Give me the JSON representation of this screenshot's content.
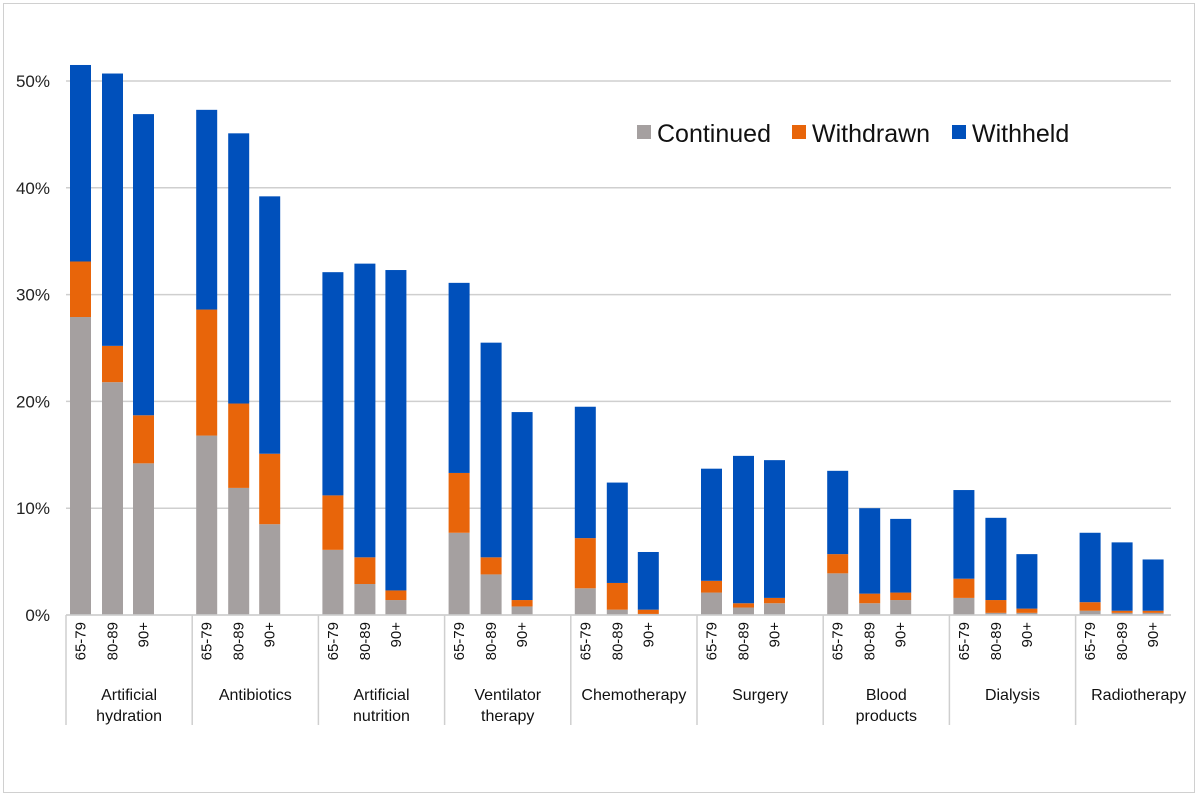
{
  "chart_data": {
    "type": "bar",
    "stacked": true,
    "title": "",
    "xlabel": "",
    "ylabel": "",
    "ylim": [
      0,
      50
    ],
    "yticks": [
      "0%",
      "10%",
      "20%",
      "30%",
      "40%",
      "50%"
    ],
    "grid": true,
    "legend_position": "top-right",
    "age_groups": [
      "65-79",
      "80-89",
      "90+"
    ],
    "categories": [
      {
        "name": "Artificial hydration",
        "lines": [
          "Artificial",
          "hydration"
        ]
      },
      {
        "name": "Antibiotics",
        "lines": [
          "Antibiotics"
        ]
      },
      {
        "name": "Artificial nutrition",
        "lines": [
          "Artificial",
          "nutrition"
        ]
      },
      {
        "name": "Ventilator therapy",
        "lines": [
          "Ventilator",
          "therapy"
        ]
      },
      {
        "name": "Chemotherapy",
        "lines": [
          "Chemotherapy"
        ]
      },
      {
        "name": "Surgery",
        "lines": [
          "Surgery"
        ]
      },
      {
        "name": "Blood products",
        "lines": [
          "Blood",
          "products"
        ]
      },
      {
        "name": "Dialysis",
        "lines": [
          "Dialysis"
        ]
      },
      {
        "name": "Radiotherapy",
        "lines": [
          "Radiotherapy"
        ]
      }
    ],
    "series": [
      {
        "name": "Continued",
        "color": "#a5a0a0",
        "values": [
          [
            27.9,
            21.8,
            14.2
          ],
          [
            16.8,
            11.9,
            8.5
          ],
          [
            6.1,
            2.9,
            1.4
          ],
          [
            7.7,
            3.8,
            0.8
          ],
          [
            2.5,
            0.5,
            0.1
          ],
          [
            2.1,
            0.7,
            1.1
          ],
          [
            3.9,
            1.1,
            1.4
          ],
          [
            1.6,
            0.2,
            0.2
          ],
          [
            0.4,
            0.2,
            0.2
          ]
        ]
      },
      {
        "name": "Withdrawn",
        "color": "#e8650a",
        "values": [
          [
            5.2,
            3.4,
            4.5
          ],
          [
            11.8,
            7.9,
            6.6
          ],
          [
            5.1,
            2.5,
            0.9
          ],
          [
            5.6,
            1.6,
            0.6
          ],
          [
            4.7,
            2.5,
            0.4
          ],
          [
            1.1,
            0.4,
            0.5
          ],
          [
            1.8,
            0.9,
            0.7
          ],
          [
            1.8,
            1.2,
            0.4
          ],
          [
            0.8,
            0.2,
            0.2
          ]
        ]
      },
      {
        "name": "Withheld",
        "color": "#0050bb",
        "values": [
          [
            18.4,
            25.5,
            28.2
          ],
          [
            18.7,
            25.3,
            24.1
          ],
          [
            20.9,
            27.5,
            30.0
          ],
          [
            17.8,
            20.1,
            17.6
          ],
          [
            12.3,
            9.4,
            5.4
          ],
          [
            10.5,
            13.8,
            12.9
          ],
          [
            7.8,
            8.0,
            6.9
          ],
          [
            8.3,
            7.7,
            5.1
          ],
          [
            6.5,
            6.4,
            4.8
          ]
        ]
      }
    ]
  }
}
